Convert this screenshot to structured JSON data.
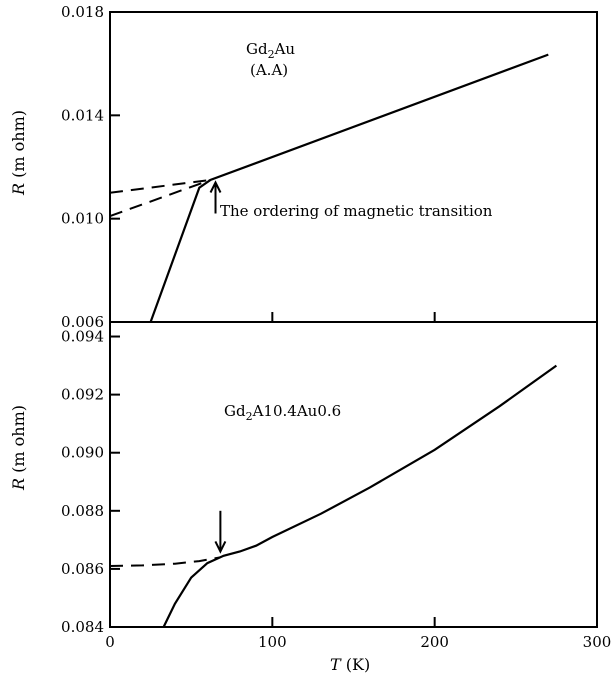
{
  "chart_data": [
    {
      "type": "line",
      "panel": "top",
      "annotation_compound": {
        "base": "Gd",
        "sub": "2",
        "rest": "Au"
      },
      "annotation_sample": "(A.A)",
      "annotation_transition": "The ordering of magnetic transition",
      "ylabel": {
        "symbol": "R",
        "unit": " (m ohm)"
      },
      "xlim": [
        0,
        300
      ],
      "ylim": [
        0.006,
        0.018
      ],
      "yticks": [
        "0.006",
        "0.010",
        "0.014",
        "0.018"
      ],
      "xticks": [
        "0",
        "100",
        "200",
        "300"
      ],
      "series": [
        {
          "style": "solid",
          "x": [
            25,
            55,
            62,
            270
          ],
          "y": [
            0.006,
            0.0112,
            0.0115,
            0.01635
          ]
        },
        {
          "style": "dashed",
          "x": [
            0,
            62
          ],
          "y": [
            0.011,
            0.0115
          ]
        },
        {
          "style": "dashed",
          "x": [
            0,
            62
          ],
          "y": [
            0.0101,
            0.0115
          ]
        }
      ],
      "arrow": {
        "x": 65,
        "y_from": 0.0102,
        "y_to": 0.0114,
        "direction": "up"
      }
    },
    {
      "type": "line",
      "panel": "bottom",
      "annotation_compound": {
        "base": "Gd",
        "sub": "2",
        "rest": "A10.4Au0.6"
      },
      "ylabel": {
        "symbol": "R",
        "unit": " (m ohm)"
      },
      "xlabel": {
        "symbol": "T",
        "unit": " (K)"
      },
      "xlim": [
        0,
        300
      ],
      "ylim": [
        0.084,
        0.0945
      ],
      "yticks": [
        "0.084",
        "0.086",
        "0.088",
        "0.090",
        "0.092",
        "0.094"
      ],
      "xticks": [
        "0",
        "100",
        "200",
        "300"
      ],
      "series": [
        {
          "style": "solid",
          "x": [
            33,
            40,
            50,
            60,
            70,
            80,
            90,
            100,
            130,
            160,
            200,
            240,
            275
          ],
          "y": [
            0.084,
            0.0848,
            0.0857,
            0.0862,
            0.08645,
            0.0866,
            0.0868,
            0.0871,
            0.0879,
            0.0888,
            0.0901,
            0.0916,
            0.093
          ]
        },
        {
          "style": "dashed",
          "x": [
            0,
            20,
            40,
            55,
            68
          ],
          "y": [
            0.0861,
            0.08612,
            0.08618,
            0.08627,
            0.0864
          ]
        }
      ],
      "arrow": {
        "x": 68,
        "y_from": 0.088,
        "y_to": 0.0866,
        "direction": "down"
      }
    }
  ]
}
